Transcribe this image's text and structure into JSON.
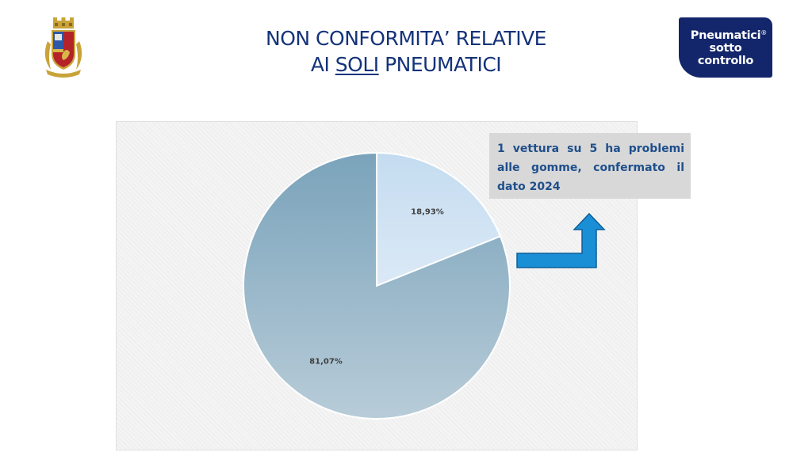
{
  "header": {
    "title_line1": "NON CONFORMITA’ RELATIVE",
    "title_line2_prefix": "AI ",
    "title_line2_underlined": "SOLI",
    "title_line2_suffix": " PNEUMATICI"
  },
  "logo": {
    "line1": "Pneumatici",
    "line2": "sotto",
    "line3": "controllo",
    "reg_mark": "®",
    "background_color": "#13266b"
  },
  "emblem": {
    "icon": "police-coat-of-arms-icon"
  },
  "callout": {
    "text": "1 vettura su 5 ha problemi alle gomme, confermato il dato 2024"
  },
  "arrow": {
    "icon": "bent-arrow-up-icon",
    "color": "#1a8fd6"
  },
  "chart_data": {
    "type": "pie",
    "slices": [
      {
        "value": 18.93,
        "label": "18,93%",
        "color_top": "#c4dcf0",
        "color_bottom": "#dbe9f6"
      },
      {
        "value": 81.07,
        "label": "81,07%",
        "color_top": "#7aa3bb",
        "color_bottom": "#b8ccd8"
      }
    ],
    "start_angle_deg": 90,
    "direction": "clockwise"
  }
}
